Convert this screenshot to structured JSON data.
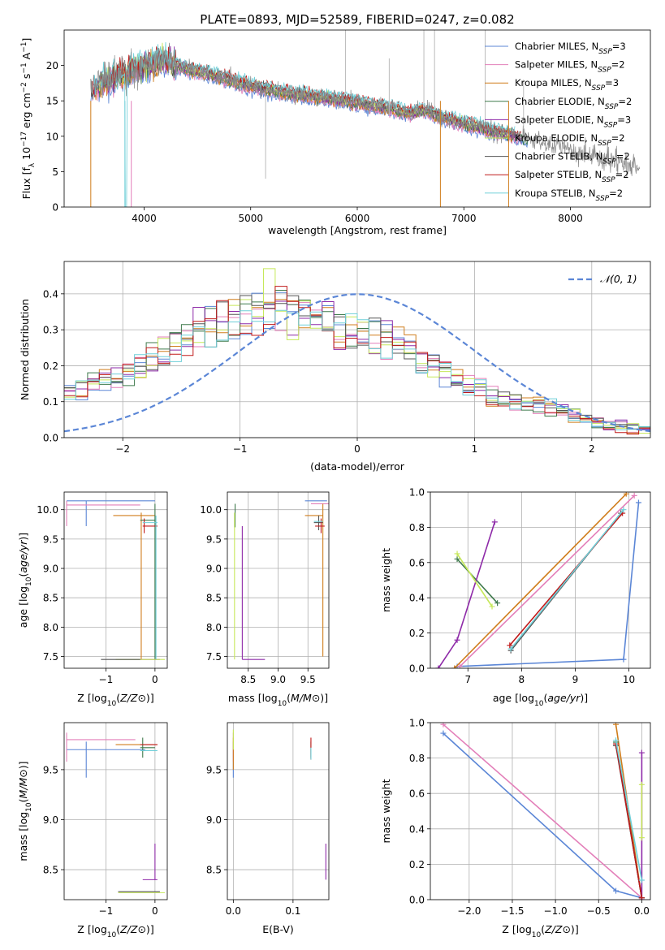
{
  "figure_title": "PLATE=0893, MJD=52589, FIBERID=0247, z=0.082",
  "series": [
    {
      "name": "Chabrier MILES",
      "nssp": "3",
      "color": "#5b86d6"
    },
    {
      "name": "Salpeter MILES",
      "nssp": "2",
      "color": "#e37fb9"
    },
    {
      "name": "Kroupa MILES",
      "nssp": "3",
      "color": "#d07d1c"
    },
    {
      "name": "Chabrier ELODIE",
      "nssp": "2",
      "color": "#3f7a4c"
    },
    {
      "name": "Salpeter ELODIE",
      "nssp": "3",
      "color": "#8e2aa8"
    },
    {
      "name": "Kroupa ELODIE",
      "nssp": "2",
      "color": "#c6e85a"
    },
    {
      "name": "Chabrier STELIB",
      "nssp": "2",
      "color": "#555555"
    },
    {
      "name": "Salpeter STELIB",
      "nssp": "2",
      "color": "#c01a1a"
    },
    {
      "name": "Kroupa STELIB",
      "nssp": "2",
      "color": "#6fcfd8"
    }
  ],
  "chart_data": [
    {
      "id": "spectrum",
      "type": "line",
      "xlabel": "wavelength [Angstrom, rest frame]",
      "ylabel": "Flux [f_λ 10^-17 erg cm^-2 s^-1 A^-1]",
      "xlim": [
        3250,
        8750
      ],
      "ylim": [
        0,
        25
      ],
      "xticks": [
        4000,
        5000,
        6000,
        7000,
        8000
      ],
      "yticks": [
        0,
        5,
        10,
        15,
        20
      ],
      "legend": "top-right",
      "grid": false,
      "data_color": "#888888",
      "continuum_x": [
        3500,
        3600,
        3700,
        3800,
        3900,
        4000,
        4100,
        4200,
        4400,
        4600,
        4800,
        5000,
        5200,
        5400,
        5600,
        5800,
        6000,
        6200,
        6400,
        6500,
        6600,
        6700,
        6800,
        7000,
        7200,
        7400,
        7600
      ],
      "continuum_y": [
        16.5,
        17.5,
        18.2,
        18.5,
        19.5,
        20.0,
        20.5,
        20.8,
        19.5,
        18.8,
        18.0,
        17.0,
        16.5,
        16.0,
        15.6,
        15.2,
        14.8,
        14.2,
        13.6,
        13.2,
        13.8,
        13.3,
        12.6,
        11.8,
        11.0,
        10.3,
        9.6
      ],
      "data_model_end": 7600,
      "data_end": 8650
    },
    {
      "id": "residuals",
      "type": "area",
      "xlabel": "(data-model)/error",
      "ylabel": "Normed distribution",
      "xlim": [
        -2.5,
        2.5
      ],
      "ylim": [
        0,
        0.49
      ],
      "xticks": [
        -2,
        -1,
        0,
        1,
        2
      ],
      "yticks": [
        0,
        0.1,
        0.2,
        0.3,
        0.4
      ],
      "grid": true,
      "legend": "top-right",
      "normal_label": "𝒩(0, 1)",
      "normal_color": "#5b86d6",
      "bin_edges_start": -2.5,
      "bin_width": 0.1,
      "histogram_base": [
        0.12,
        0.14,
        0.15,
        0.16,
        0.17,
        0.18,
        0.2,
        0.22,
        0.24,
        0.26,
        0.28,
        0.3,
        0.31,
        0.32,
        0.33,
        0.34,
        0.345,
        0.35,
        0.35,
        0.345,
        0.34,
        0.33,
        0.32,
        0.31,
        0.3,
        0.29,
        0.28,
        0.27,
        0.26,
        0.24,
        0.22,
        0.2,
        0.18,
        0.16,
        0.15,
        0.14,
        0.12,
        0.11,
        0.1,
        0.09,
        0.085,
        0.08,
        0.07,
        0.06,
        0.05,
        0.04,
        0.035,
        0.03,
        0.025,
        0.02
      ]
    },
    {
      "id": "age_vs_Z",
      "type": "scatter",
      "xlabel": "Z [log10(Z/Z⊙)]",
      "ylabel": "age  [log10(age/yr)]",
      "xlim": [
        -1.85,
        0.25
      ],
      "ylim": [
        7.3,
        10.3
      ],
      "xticks": [
        -1,
        0
      ],
      "yticks": [
        7.5,
        8.0,
        8.5,
        9.0,
        9.5,
        10.0
      ],
      "grid": true,
      "segments": [
        {
          "s": 0,
          "x1": -1.8,
          "x2": 0,
          "y1": 10.15,
          "y2": 10.15
        },
        {
          "s": 0,
          "x1": -1.4,
          "x2": -1.4,
          "y1": 9.72,
          "y2": 10.15
        },
        {
          "s": 1,
          "x1": -1.8,
          "x2": -0.3,
          "y1": 10.08,
          "y2": 10.08
        },
        {
          "s": 1,
          "x1": -1.8,
          "x2": -1.8,
          "y1": 9.72,
          "y2": 10.15
        },
        {
          "s": 2,
          "x1": -0.85,
          "x2": 0,
          "y1": 9.9,
          "y2": 9.9
        },
        {
          "s": 2,
          "x1": -0.28,
          "x2": -0.28,
          "y1": 7.45,
          "y2": 9.95
        },
        {
          "s": 3,
          "x1": -0.3,
          "x2": 0,
          "y1": 9.82,
          "y2": 9.82
        },
        {
          "s": 3,
          "x1": 0,
          "x2": 0,
          "y1": 7.45,
          "y2": 10.1
        },
        {
          "s": 4,
          "x1": -0.3,
          "x2": 0.1,
          "y1": 7.45,
          "y2": 7.45
        },
        {
          "s": 5,
          "x1": -0.8,
          "x2": 0.2,
          "y1": 7.45,
          "y2": 7.45
        },
        {
          "s": 6,
          "x1": -1.1,
          "x2": -0.3,
          "y1": 7.45,
          "y2": 7.45
        },
        {
          "s": 7,
          "x1": -0.25,
          "x2": 0.05,
          "y1": 9.72,
          "y2": 9.72
        },
        {
          "s": 7,
          "x1": -0.22,
          "x2": -0.22,
          "y1": 9.6,
          "y2": 9.85
        },
        {
          "s": 8,
          "x1": -0.25,
          "x2": 0.05,
          "y1": 9.78,
          "y2": 9.78
        },
        {
          "s": 8,
          "x1": 0.02,
          "x2": 0.02,
          "y1": 7.45,
          "y2": 9.9
        }
      ]
    },
    {
      "id": "age_vs_mass",
      "type": "scatter",
      "xlabel": "mass [log10(M/M⊙)]",
      "ylabel": "",
      "xlim": [
        8.15,
        9.85
      ],
      "ylim": [
        7.3,
        10.3
      ],
      "xticks": [
        8.5,
        9.0,
        9.5
      ],
      "yticks": [
        7.5,
        8.0,
        8.5,
        9.0,
        9.5,
        10.0
      ],
      "grid": true,
      "segments": [
        {
          "s": 0,
          "x1": 9.45,
          "x2": 9.82,
          "y1": 10.15,
          "y2": 10.15
        },
        {
          "s": 1,
          "x1": 9.55,
          "x2": 9.85,
          "y1": 10.1,
          "y2": 10.1
        },
        {
          "s": 2,
          "x1": 9.45,
          "x2": 9.75,
          "y1": 9.9,
          "y2": 9.9
        },
        {
          "s": 2,
          "x1": 9.75,
          "x2": 9.75,
          "y1": 7.5,
          "y2": 10.1
        },
        {
          "s": 3,
          "x1": 8.28,
          "x2": 8.28,
          "y1": 9.7,
          "y2": 10.1
        },
        {
          "s": 4,
          "x1": 8.4,
          "x2": 8.4,
          "y1": 7.45,
          "y2": 9.72
        },
        {
          "s": 4,
          "x1": 8.4,
          "x2": 8.78,
          "y1": 7.45,
          "y2": 7.45
        },
        {
          "s": 5,
          "x1": 8.27,
          "x2": 8.27,
          "y1": 7.45,
          "y2": 9.95
        },
        {
          "s": 6,
          "x1": 9.6,
          "x2": 9.75,
          "y1": 9.78,
          "y2": 9.78
        },
        {
          "s": 6,
          "x1": 9.68,
          "x2": 9.68,
          "y1": 9.65,
          "y2": 9.9
        },
        {
          "s": 7,
          "x1": 9.62,
          "x2": 9.78,
          "y1": 9.72,
          "y2": 9.72
        },
        {
          "s": 7,
          "x1": 9.72,
          "x2": 9.72,
          "y1": 9.6,
          "y2": 9.85
        },
        {
          "s": 8,
          "x1": 9.6,
          "x2": 9.75,
          "y1": 9.8,
          "y2": 9.8
        }
      ]
    },
    {
      "id": "weight_vs_age",
      "type": "line",
      "xlabel": "age  [log10(age/yr)]",
      "ylabel": "mass weight",
      "xlim": [
        6.3,
        10.4
      ],
      "ylim": [
        0,
        1.0
      ],
      "xticks": [
        7,
        8,
        9,
        10
      ],
      "yticks": [
        0,
        0.2,
        0.4,
        0.6,
        0.8,
        1.0
      ],
      "grid": true,
      "polylines": [
        {
          "s": 0,
          "x": [
            6.8,
            9.9,
            10.18
          ],
          "y": [
            0.01,
            0.05,
            0.94
          ]
        },
        {
          "s": 1,
          "x": [
            6.85,
            10.1
          ],
          "y": [
            0.01,
            0.98
          ]
        },
        {
          "s": 2,
          "x": [
            6.75,
            9.95
          ],
          "y": [
            0.0,
            0.99
          ]
        },
        {
          "s": 3,
          "x": [
            6.8,
            7.55
          ],
          "y": [
            0.62,
            0.37
          ]
        },
        {
          "s": 4,
          "x": [
            6.45,
            6.8,
            7.5
          ],
          "y": [
            0.0,
            0.16,
            0.83
          ]
        },
        {
          "s": 5,
          "x": [
            6.8,
            7.45
          ],
          "y": [
            0.65,
            0.35
          ]
        },
        {
          "s": 6,
          "x": [
            7.8,
            9.85
          ],
          "y": [
            0.1,
            0.88
          ]
        },
        {
          "s": 7,
          "x": [
            7.78,
            9.88
          ],
          "y": [
            0.13,
            0.88
          ]
        },
        {
          "s": 8,
          "x": [
            7.8,
            9.9
          ],
          "y": [
            0.11,
            0.9
          ]
        }
      ]
    },
    {
      "id": "mass_vs_Z",
      "type": "scatter",
      "xlabel": "Z [log10(Z/Z⊙)]",
      "ylabel": "mass [log10(M/M⊙)]",
      "xlim": [
        -1.85,
        0.25
      ],
      "ylim": [
        8.2,
        9.97
      ],
      "xticks": [
        -1,
        0
      ],
      "yticks": [
        8.5,
        9.0,
        9.5
      ],
      "grid": true,
      "segments": [
        {
          "s": 0,
          "x1": -1.8,
          "x2": -0.2,
          "y1": 9.7,
          "y2": 9.7
        },
        {
          "s": 0,
          "x1": -1.4,
          "x2": -1.4,
          "y1": 9.42,
          "y2": 9.78
        },
        {
          "s": 1,
          "x1": -1.8,
          "x2": -0.4,
          "y1": 9.8,
          "y2": 9.8
        },
        {
          "s": 1,
          "x1": -1.8,
          "x2": -1.8,
          "y1": 9.58,
          "y2": 9.87
        },
        {
          "s": 2,
          "x1": -0.8,
          "x2": 0.05,
          "y1": 9.75,
          "y2": 9.75
        },
        {
          "s": 3,
          "x1": -0.3,
          "x2": 0.0,
          "y1": 9.72,
          "y2": 9.72
        },
        {
          "s": 3,
          "x1": -0.25,
          "x2": -0.25,
          "y1": 9.62,
          "y2": 9.82
        },
        {
          "s": 4,
          "x1": -0.25,
          "x2": 0.05,
          "y1": 8.4,
          "y2": 8.4
        },
        {
          "s": 4,
          "x1": 0.0,
          "x2": 0.0,
          "y1": 8.4,
          "y2": 8.76
        },
        {
          "s": 5,
          "x1": -0.75,
          "x2": 0.2,
          "y1": 8.27,
          "y2": 8.27
        },
        {
          "s": 6,
          "x1": -0.75,
          "x2": 0.1,
          "y1": 8.28,
          "y2": 8.28
        },
        {
          "s": 7,
          "x1": -0.3,
          "x2": 0.05,
          "y1": 9.75,
          "y2": 9.75
        },
        {
          "s": 8,
          "x1": -0.3,
          "x2": 0.05,
          "y1": 9.69,
          "y2": 9.69
        }
      ]
    },
    {
      "id": "mass_vs_ebv",
      "type": "scatter",
      "xlabel": "E(B-V)",
      "ylabel": "",
      "xlim": [
        -0.01,
        0.16
      ],
      "ylim": [
        8.2,
        9.97
      ],
      "xticks": [
        0.0,
        0.1
      ],
      "yticks": [
        8.5,
        9.0,
        9.5
      ],
      "grid": true,
      "segments": [
        {
          "s": 0,
          "x1": 0.0,
          "x2": 0.0,
          "y1": 9.42,
          "y2": 9.78
        },
        {
          "s": 1,
          "x1": 0.0,
          "x2": 0.0,
          "y1": 9.58,
          "y2": 9.87
        },
        {
          "s": 2,
          "x1": 0.0,
          "x2": 0.0,
          "y1": 9.5,
          "y2": 9.82
        },
        {
          "s": 3,
          "x1": 0.13,
          "x2": 0.13,
          "y1": 9.62,
          "y2": 9.78
        },
        {
          "s": 4,
          "x1": 0.155,
          "x2": 0.155,
          "y1": 8.4,
          "y2": 8.76
        },
        {
          "s": 5,
          "x1": 0.0,
          "x2": 0.0,
          "y1": 9.7,
          "y2": 9.9
        },
        {
          "s": 7,
          "x1": 0.13,
          "x2": 0.13,
          "y1": 9.6,
          "y2": 9.82
        },
        {
          "s": 8,
          "x1": 0.13,
          "x2": 0.13,
          "y1": 9.6,
          "y2": 9.72
        }
      ]
    },
    {
      "id": "weight_vs_Z",
      "type": "line",
      "xlabel": "Z [log10(Z/Z⊙)]",
      "ylabel": "mass weight",
      "xlim": [
        -2.45,
        0.1
      ],
      "ylim": [
        0,
        1.0
      ],
      "xticks": [
        -2.0,
        -1.5,
        -1.0,
        -0.5,
        0.0
      ],
      "yticks": [
        0,
        0.2,
        0.4,
        0.6,
        0.8,
        1.0
      ],
      "grid": true,
      "polylines": [
        {
          "s": 0,
          "x": [
            -2.3,
            -0.3,
            0.0
          ],
          "y": [
            0.94,
            0.05,
            0.01
          ]
        },
        {
          "s": 1,
          "x": [
            -2.3,
            0.0
          ],
          "y": [
            0.99,
            0.01
          ]
        },
        {
          "s": 2,
          "x": [
            -0.3,
            0.0
          ],
          "y": [
            0.99,
            0.01
          ]
        },
        {
          "s": 3,
          "x": [
            -0.3,
            0.0
          ],
          "y": [
            0.89,
            0.01
          ]
        },
        {
          "s": 4,
          "x": [
            0.0,
            0.0
          ],
          "y": [
            0.83,
            0.0
          ]
        },
        {
          "s": 5,
          "x": [
            0.0,
            0.0
          ],
          "y": [
            0.65,
            0.35
          ]
        },
        {
          "s": 6,
          "x": [
            -0.3,
            0.0
          ],
          "y": [
            0.87,
            0.01
          ]
        },
        {
          "s": 7,
          "x": [
            -0.3,
            0.0
          ],
          "y": [
            0.88,
            0.01
          ]
        },
        {
          "s": 8,
          "x": [
            -0.3,
            0.0
          ],
          "y": [
            0.9,
            0.11
          ]
        }
      ]
    }
  ]
}
